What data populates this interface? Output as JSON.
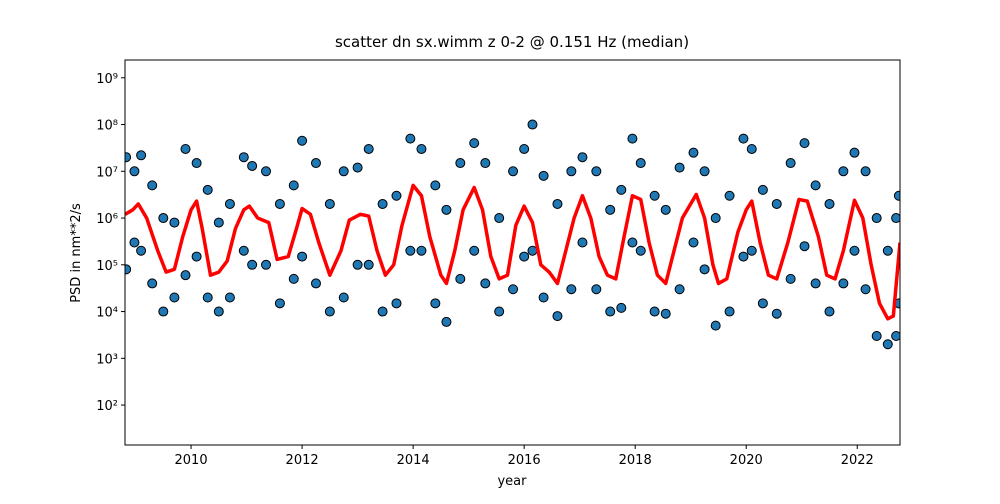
{
  "chart_data": {
    "type": "scatter",
    "title": "scatter dn sx.wimm z 0-2 @ 0.151 Hz (median)",
    "xlabel": "year",
    "ylabel": "PSD in nm**2/s",
    "xlim": [
      2008.81,
      2022.77
    ],
    "ylim": [
      14,
      2400000000
    ],
    "yscale": "log",
    "xticks": [
      2010,
      2012,
      2014,
      2016,
      2018,
      2020,
      2022
    ],
    "yticks": [
      {
        "value": 100,
        "label": "10²"
      },
      {
        "value": 1000,
        "label": "10³"
      },
      {
        "value": 10000,
        "label": "10⁴"
      },
      {
        "value": 100000,
        "label": "10⁵"
      },
      {
        "value": 1000000,
        "label": "10⁶"
      },
      {
        "value": 10000000,
        "label": "10⁷"
      },
      {
        "value": 100000000,
        "label": "10⁸"
      },
      {
        "value": 1000000000,
        "label": "10⁹"
      }
    ],
    "series": [
      {
        "type": "scatter",
        "color": "#1f77b4",
        "x": [
          2008.83,
          2008.83,
          2008.98,
          2008.98,
          2009.1,
          2009.1,
          2009.3,
          2009.3,
          2009.5,
          2009.5,
          2009.7,
          2009.7,
          2009.9,
          2009.9,
          2010.1,
          2010.1,
          2010.3,
          2010.3,
          2010.5,
          2010.5,
          2010.7,
          2010.7,
          2010.95,
          2010.95,
          2011.1,
          2011.1,
          2011.35,
          2011.35,
          2011.6,
          2011.6,
          2011.85,
          2011.85,
          2012.0,
          2012.0,
          2012.25,
          2012.25,
          2012.5,
          2012.5,
          2012.75,
          2012.75,
          2013.0,
          2013.0,
          2013.2,
          2013.2,
          2013.45,
          2013.45,
          2013.7,
          2013.7,
          2013.95,
          2013.95,
          2014.15,
          2014.15,
          2014.4,
          2014.4,
          2014.6,
          2014.6,
          2014.85,
          2014.85,
          2015.1,
          2015.1,
          2015.3,
          2015.3,
          2015.55,
          2015.55,
          2015.8,
          2015.8,
          2016.0,
          2016.0,
          2016.15,
          2016.15,
          2016.35,
          2016.35,
          2016.6,
          2016.6,
          2016.85,
          2016.85,
          2017.05,
          2017.05,
          2017.3,
          2017.3,
          2017.55,
          2017.55,
          2017.75,
          2017.75,
          2017.95,
          2017.95,
          2018.1,
          2018.1,
          2018.35,
          2018.35,
          2018.55,
          2018.55,
          2018.8,
          2018.8,
          2019.05,
          2019.05,
          2019.25,
          2019.25,
          2019.45,
          2019.45,
          2019.7,
          2019.7,
          2019.95,
          2019.95,
          2020.1,
          2020.1,
          2020.3,
          2020.3,
          2020.55,
          2020.55,
          2020.8,
          2020.8,
          2021.05,
          2021.05,
          2021.25,
          2021.25,
          2021.5,
          2021.5,
          2021.75,
          2021.75,
          2021.95,
          2021.95,
          2022.15,
          2022.15,
          2022.35,
          2022.35,
          2022.55,
          2022.55,
          2022.7,
          2022.7,
          2022.75,
          2022.75
        ],
        "values": [
          20000000,
          80000,
          10000000,
          300000,
          22000000,
          200000,
          5000000,
          40000,
          1000000,
          10000,
          800000,
          20000,
          30000000,
          60000,
          15000000,
          150000,
          4000000,
          20000,
          800000,
          10000,
          2000000,
          20000,
          20000000,
          200000,
          13000000,
          100000,
          10000000,
          100000,
          2000000,
          15000,
          5000000,
          50000,
          45000000,
          150000,
          15000000,
          40000,
          2000000,
          10000,
          10000000,
          20000,
          12000000,
          100000,
          30000000,
          100000,
          2000000,
          10000,
          3000000,
          15000,
          50000000,
          200000,
          30000000,
          200000,
          5000000,
          15000,
          1500000,
          6000,
          15000000,
          50000,
          40000000,
          200000,
          15000000,
          40000,
          1000000,
          10000,
          10000000,
          30000,
          30000000,
          150000,
          100000000,
          200000,
          8000000,
          20000,
          2000000,
          8000,
          10000000,
          30000,
          20000000,
          300000,
          10000000,
          30000,
          1500000,
          10000,
          4000000,
          12000,
          50000000,
          300000,
          15000000,
          200000,
          3000000,
          10000,
          1500000,
          9000,
          12000000,
          30000,
          25000000,
          300000,
          10000000,
          80000,
          1000000,
          5000,
          3000000,
          10000,
          50000000,
          150000,
          30000000,
          200000,
          4000000,
          15000,
          2000000,
          9000,
          15000000,
          50000,
          40000000,
          250000,
          5000000,
          40000,
          2000000,
          10000,
          10000000,
          40000,
          25000000,
          200000,
          10000000,
          30000,
          1000000,
          3000,
          200000,
          2000,
          1000000,
          3000,
          3000000,
          15000
        ]
      },
      {
        "type": "line",
        "color": "#ff0000",
        "x": [
          2008.81,
          2008.95,
          2009.05,
          2009.2,
          2009.4,
          2009.55,
          2009.7,
          2009.85,
          2010.0,
          2010.1,
          2010.2,
          2010.35,
          2010.5,
          2010.65,
          2010.8,
          2010.95,
          2011.05,
          2011.2,
          2011.4,
          2011.55,
          2011.75,
          2011.9,
          2012.0,
          2012.15,
          2012.3,
          2012.5,
          2012.7,
          2012.85,
          2013.05,
          2013.2,
          2013.35,
          2013.5,
          2013.65,
          2013.8,
          2014.0,
          2014.15,
          2014.3,
          2014.5,
          2014.6,
          2014.75,
          2014.9,
          2015.1,
          2015.25,
          2015.4,
          2015.55,
          2015.7,
          2015.85,
          2016.0,
          2016.15,
          2016.3,
          2016.45,
          2016.6,
          2016.75,
          2016.9,
          2017.05,
          2017.2,
          2017.35,
          2017.5,
          2017.65,
          2017.8,
          2017.95,
          2018.1,
          2018.25,
          2018.4,
          2018.55,
          2018.7,
          2018.85,
          2019.1,
          2019.25,
          2019.4,
          2019.5,
          2019.65,
          2019.85,
          2020.0,
          2020.1,
          2020.25,
          2020.4,
          2020.55,
          2020.75,
          2020.95,
          2021.1,
          2021.3,
          2021.45,
          2021.6,
          2021.75,
          2021.95,
          2022.1,
          2022.25,
          2022.4,
          2022.55,
          2022.65,
          2022.77
        ],
        "values": [
          1200000,
          1500000,
          2000000,
          1000000,
          200000,
          70000,
          80000,
          400000,
          1500000,
          2300000,
          600000,
          60000,
          70000,
          120000,
          600000,
          1500000,
          1800000,
          1000000,
          800000,
          130000,
          150000,
          600000,
          1600000,
          1200000,
          300000,
          60000,
          200000,
          900000,
          1200000,
          1100000,
          200000,
          60000,
          100000,
          700000,
          5000000,
          3000000,
          400000,
          60000,
          40000,
          200000,
          1500000,
          4500000,
          1500000,
          150000,
          50000,
          60000,
          700000,
          1800000,
          800000,
          100000,
          70000,
          40000,
          200000,
          1000000,
          3000000,
          1000000,
          150000,
          60000,
          50000,
          400000,
          3000000,
          2500000,
          300000,
          60000,
          40000,
          200000,
          1000000,
          3200000,
          1000000,
          100000,
          40000,
          50000,
          500000,
          1500000,
          2300000,
          300000,
          60000,
          50000,
          300000,
          2500000,
          2300000,
          400000,
          60000,
          50000,
          200000,
          2400000,
          1000000,
          100000,
          15000,
          7000,
          8000,
          300000
        ]
      }
    ]
  }
}
